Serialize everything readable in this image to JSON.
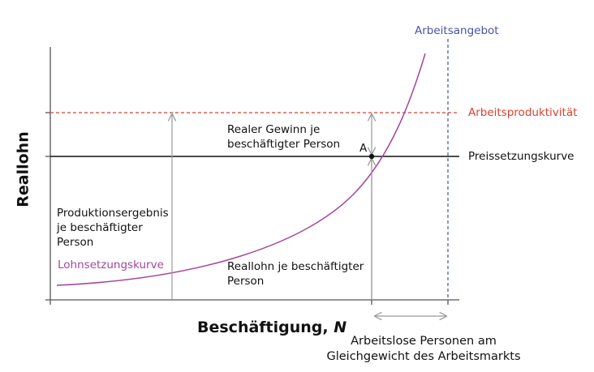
{
  "title": "",
  "axes": {
    "y_label": "Reallohn",
    "x_label": "Beschäftigung, ",
    "x_label_var": "N"
  },
  "curves": {
    "labor_supply": "Arbeitsangebot",
    "productivity": "Arbeitsproduktivität",
    "price_setting": "Preissetzungskurve",
    "wage_setting": "Lohnsetzungskurve"
  },
  "point_label": "A",
  "annotations": {
    "real_profit": "Realer Gewinn je\nbeschäftigter Person",
    "output": "Produktionsergebnis\nje beschäftigter\nPerson",
    "real_wage": "Reallohn je beschäftigter\nPerson",
    "unemployed": "Arbeitslose Personen am\nGleichgewicht des Arbeitsmarkts"
  },
  "colors": {
    "wage_setting": "#a3479b",
    "productivity": "#d9422f",
    "labor_supply": "#4754a3",
    "axes": "#555555",
    "arrows": "#999999"
  }
}
